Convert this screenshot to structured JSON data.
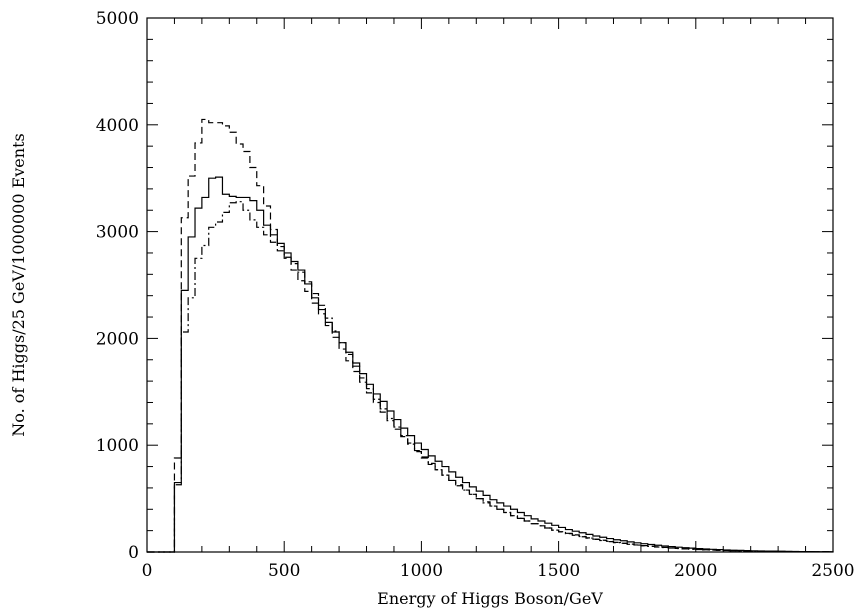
{
  "chart_data": {
    "type": "line",
    "title": "",
    "xlabel": "Energy of Higgs Boson/GeV",
    "ylabel": "No. of Higgs/25 GeV/1000000 Events",
    "xlim": [
      0,
      2500
    ],
    "ylim": [
      0,
      5000
    ],
    "x_ticks": [
      0,
      500,
      1000,
      1500,
      2000,
      2500
    ],
    "y_ticks": [
      0,
      1000,
      2000,
      3000,
      4000,
      5000
    ],
    "x_tick_labels": [
      "0",
      "500",
      "1000",
      "1500",
      "2000",
      "2500"
    ],
    "y_tick_labels": [
      "0",
      "1000",
      "2000",
      "3000",
      "4000",
      "5000"
    ],
    "grid": false,
    "histogram_step": true,
    "bin_width": 25,
    "series": [
      {
        "style": "solid",
        "x": [
          100,
          125,
          150,
          175,
          200,
          225,
          250,
          275,
          300,
          325,
          350,
          375,
          400,
          425,
          450,
          475,
          500,
          525,
          550,
          575,
          600,
          625,
          650,
          675,
          700,
          725,
          750,
          775,
          800,
          825,
          850,
          875,
          900,
          925,
          950,
          975,
          1000,
          1025,
          1050,
          1075,
          1100,
          1125,
          1150,
          1175,
          1200,
          1225,
          1250,
          1275,
          1300,
          1325,
          1350,
          1375,
          1400,
          1425,
          1450,
          1475,
          1500,
          1525,
          1550,
          1575,
          1600,
          1625,
          1650,
          1675,
          1700,
          1725,
          1750,
          1775,
          1800,
          1825,
          1850,
          1875,
          1900,
          1925,
          1950,
          1975,
          2000,
          2025,
          2050,
          2075,
          2100,
          2125,
          2150,
          2175,
          2200,
          2225,
          2250,
          2275,
          2300,
          2325,
          2350,
          2375,
          2400,
          2425,
          2450,
          2475
        ],
        "y": [
          650,
          2450,
          2950,
          3220,
          3320,
          3500,
          3510,
          3350,
          3330,
          3320,
          3320,
          3290,
          3200,
          3060,
          2970,
          2890,
          2800,
          2720,
          2640,
          2510,
          2380,
          2270,
          2150,
          2060,
          1960,
          1870,
          1770,
          1670,
          1570,
          1480,
          1410,
          1320,
          1240,
          1160,
          1090,
          1020,
          960,
          900,
          850,
          800,
          750,
          700,
          650,
          610,
          570,
          530,
          490,
          460,
          430,
          400,
          370,
          340,
          310,
          290,
          270,
          250,
          230,
          210,
          195,
          180,
          165,
          150,
          138,
          126,
          115,
          105,
          95,
          86,
          78,
          70,
          63,
          56,
          50,
          45,
          40,
          36,
          32,
          28,
          25,
          22,
          19,
          17,
          15,
          13,
          11,
          10,
          9,
          8,
          7,
          6,
          5,
          4,
          4,
          3,
          3,
          2
        ]
      },
      {
        "style": "dashed",
        "x": [
          100,
          125,
          150,
          175,
          200,
          225,
          250,
          275,
          300,
          325,
          350,
          375,
          400,
          425,
          450,
          475,
          500,
          525,
          550,
          575,
          600,
          625,
          650,
          675,
          700,
          725,
          750,
          775,
          800,
          825,
          850,
          875,
          900,
          925,
          950,
          975,
          1000,
          1025,
          1050,
          1075,
          1100,
          1125,
          1150,
          1175,
          1200,
          1225,
          1250,
          1275,
          1300,
          1325,
          1350,
          1375,
          1400,
          1425,
          1450,
          1475,
          1500,
          1525,
          1550,
          1575,
          1600,
          1625,
          1650,
          1675,
          1700,
          1725,
          1750,
          1775,
          1800,
          1825,
          1850,
          1875,
          1900,
          1925,
          1950,
          1975,
          2000,
          2025,
          2050,
          2075,
          2100,
          2125,
          2150,
          2175,
          2200,
          2225,
          2250,
          2275,
          2300,
          2325,
          2350,
          2375,
          2400,
          2425,
          2450,
          2475
        ],
        "y": [
          880,
          3130,
          3520,
          3830,
          4050,
          4020,
          4020,
          3990,
          3930,
          3820,
          3750,
          3600,
          3430,
          3240,
          3020,
          2860,
          2750,
          2640,
          2540,
          2440,
          2330,
          2230,
          2120,
          2010,
          1900,
          1790,
          1690,
          1590,
          1490,
          1400,
          1310,
          1230,
          1150,
          1080,
          1010,
          940,
          880,
          820,
          770,
          720,
          670,
          630,
          580,
          540,
          500,
          470,
          430,
          400,
          370,
          340,
          315,
          290,
          265,
          245,
          225,
          205,
          190,
          175,
          160,
          145,
          132,
          120,
          110,
          100,
          90,
          82,
          74,
          66,
          60,
          54,
          48,
          43,
          38,
          34,
          30,
          27,
          24,
          21,
          18,
          16,
          14,
          12,
          11,
          10,
          9,
          8,
          7,
          6,
          5,
          4,
          4,
          3,
          3,
          2,
          2,
          2
        ]
      },
      {
        "style": "dash-dot",
        "x": [
          100,
          125,
          150,
          175,
          200,
          225,
          250,
          275,
          300,
          325,
          350,
          375,
          400,
          425,
          450,
          475,
          500,
          525,
          550,
          575,
          600,
          625,
          650,
          675,
          700,
          725,
          750,
          775,
          800,
          825,
          850,
          875,
          900,
          925,
          950,
          975,
          1000,
          1025,
          1050,
          1075,
          1100,
          1125,
          1150,
          1175,
          1200,
          1225,
          1250,
          1275,
          1300,
          1325,
          1350,
          1375,
          1400,
          1425,
          1450,
          1475,
          1500,
          1525,
          1550,
          1575,
          1600,
          1625,
          1650,
          1675,
          1700,
          1725,
          1750,
          1775,
          1800,
          1825,
          1850,
          1875,
          1900,
          1925,
          1950,
          1975,
          2000,
          2025,
          2050,
          2075,
          2100,
          2125,
          2150,
          2175,
          2200,
          2225,
          2250,
          2275,
          2300,
          2325,
          2350,
          2375,
          2400,
          2425,
          2450,
          2475
        ],
        "y": [
          630,
          2060,
          2380,
          2750,
          2870,
          3040,
          3090,
          3180,
          3270,
          3280,
          3200,
          3110,
          3040,
          2970,
          2900,
          2820,
          2760,
          2700,
          2620,
          2530,
          2420,
          2310,
          2190,
          2070,
          1960,
          1850,
          1740,
          1630,
          1530,
          1430,
          1340,
          1250,
          1170,
          1090,
          1020,
          950,
          890,
          830,
          770,
          720,
          670,
          620,
          580,
          540,
          500,
          460,
          430,
          400,
          370,
          340,
          315,
          290,
          265,
          245,
          225,
          205,
          188,
          172,
          157,
          143,
          130,
          118,
          107,
          97,
          88,
          80,
          72,
          65,
          58,
          52,
          47,
          42,
          37,
          33,
          29,
          26,
          23,
          20,
          18,
          16,
          14,
          12,
          10,
          9,
          8,
          7,
          6,
          5,
          4,
          4,
          3,
          3,
          2,
          2,
          2,
          1
        ]
      }
    ]
  }
}
